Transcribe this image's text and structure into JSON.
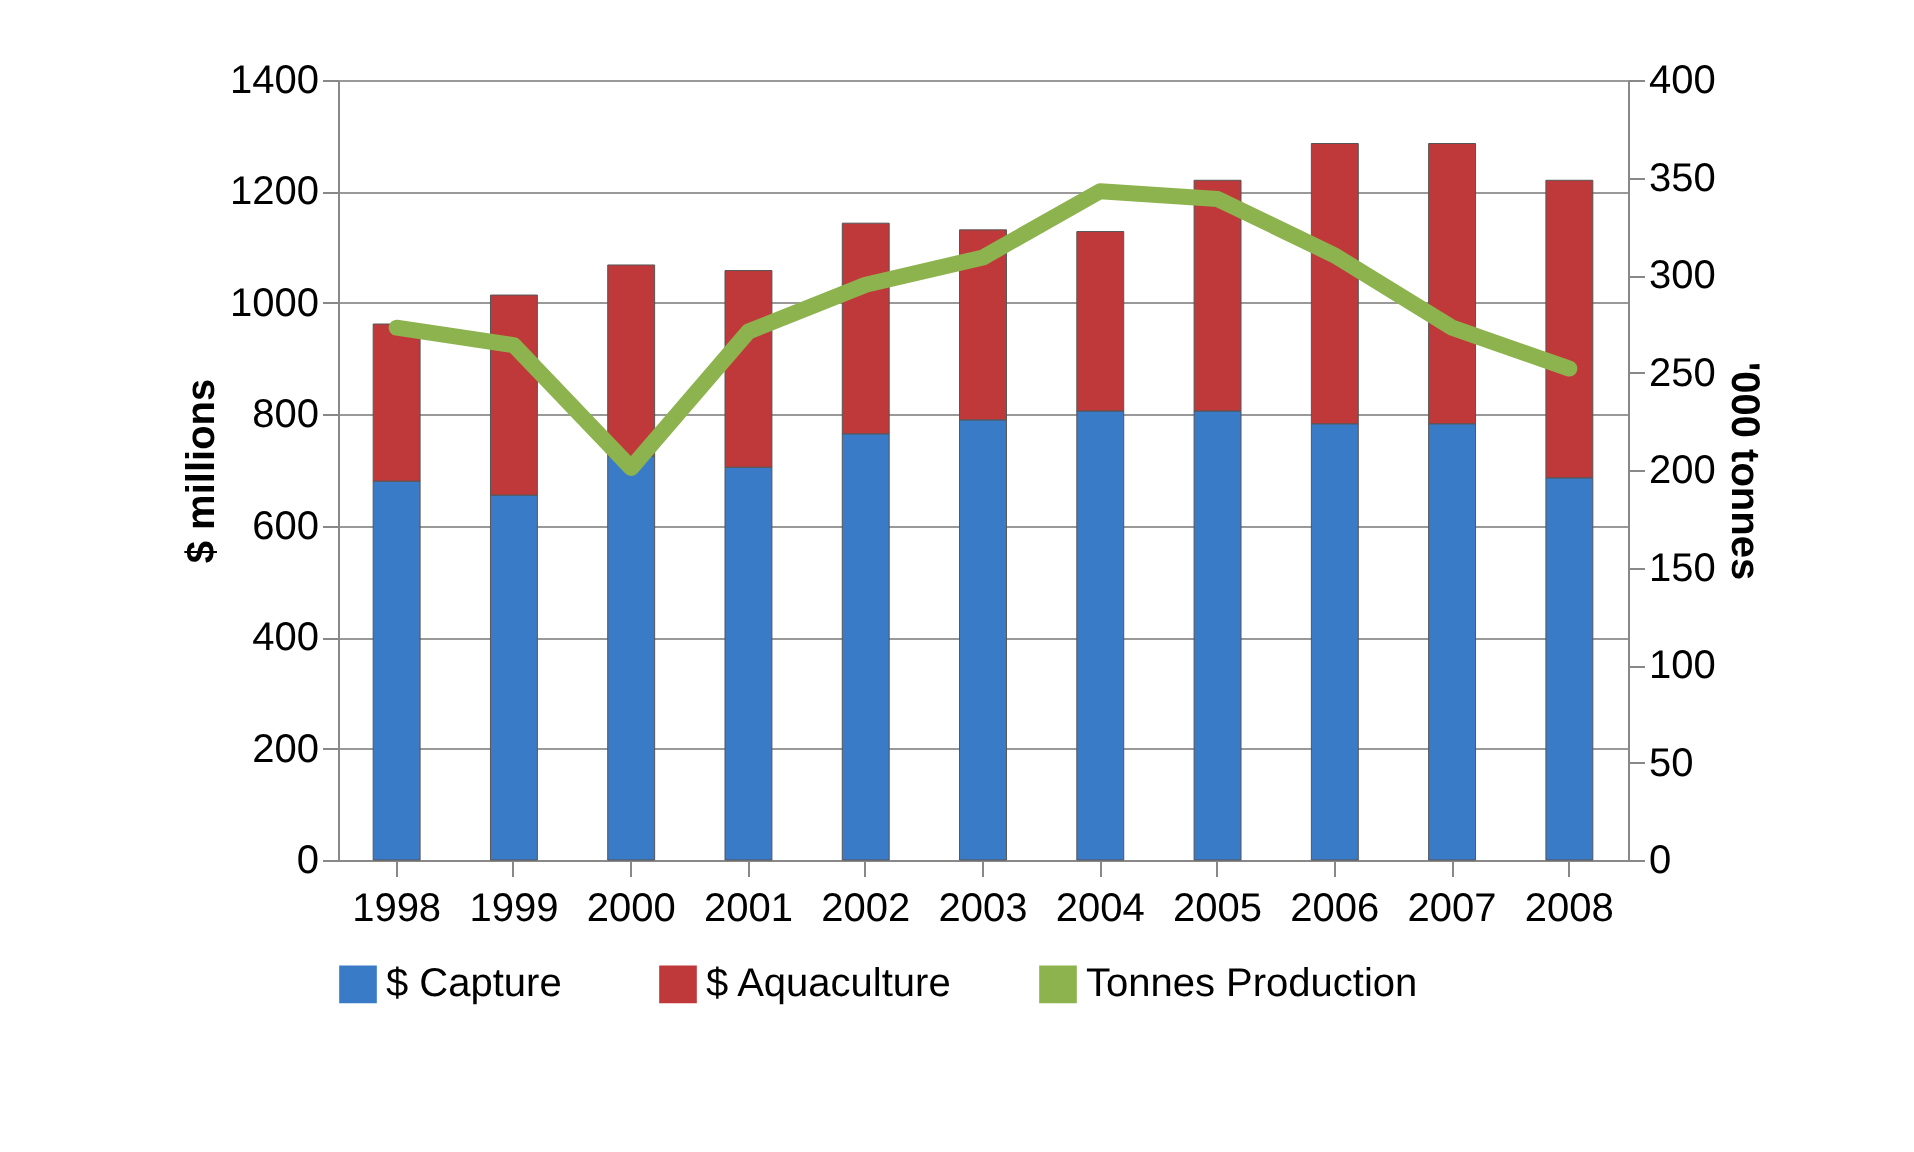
{
  "chart_data": {
    "type": "bar",
    "stacked": true,
    "ylabel": "$ millions",
    "y2label": "'000 tonnes",
    "categories": [
      "1998",
      "1999",
      "2000",
      "2001",
      "2002",
      "2003",
      "2004",
      "2005",
      "2006",
      "2007",
      "2008"
    ],
    "series": [
      {
        "name": "$  Capture",
        "color": "#3a7bc8",
        "values": [
          680,
          655,
          725,
          705,
          765,
          790,
          806,
          806,
          783,
          783,
          686
        ]
      },
      {
        "name": "$ Aquaculture",
        "color": "#c0393a",
        "values": [
          282,
          359,
          343,
          353,
          378,
          341,
          322,
          414,
          503,
          503,
          534
        ]
      },
      {
        "name": "Tonnes Production",
        "type": "line",
        "axis": "y2",
        "color": "#8db34e",
        "values": [
          273,
          264,
          201,
          271,
          295,
          309,
          343,
          339,
          310,
          273,
          252
        ]
      }
    ],
    "ylim": [
      0,
      1400
    ],
    "yticks": [
      0,
      200,
      400,
      600,
      800,
      1000,
      1200,
      1400
    ],
    "y2lim": [
      0,
      400
    ],
    "y2ticks": [
      0,
      50,
      100,
      150,
      200,
      250,
      300,
      350,
      400
    ],
    "grid": "y",
    "legend": "bottom",
    "marker": "none",
    "line_style": "solid"
  }
}
